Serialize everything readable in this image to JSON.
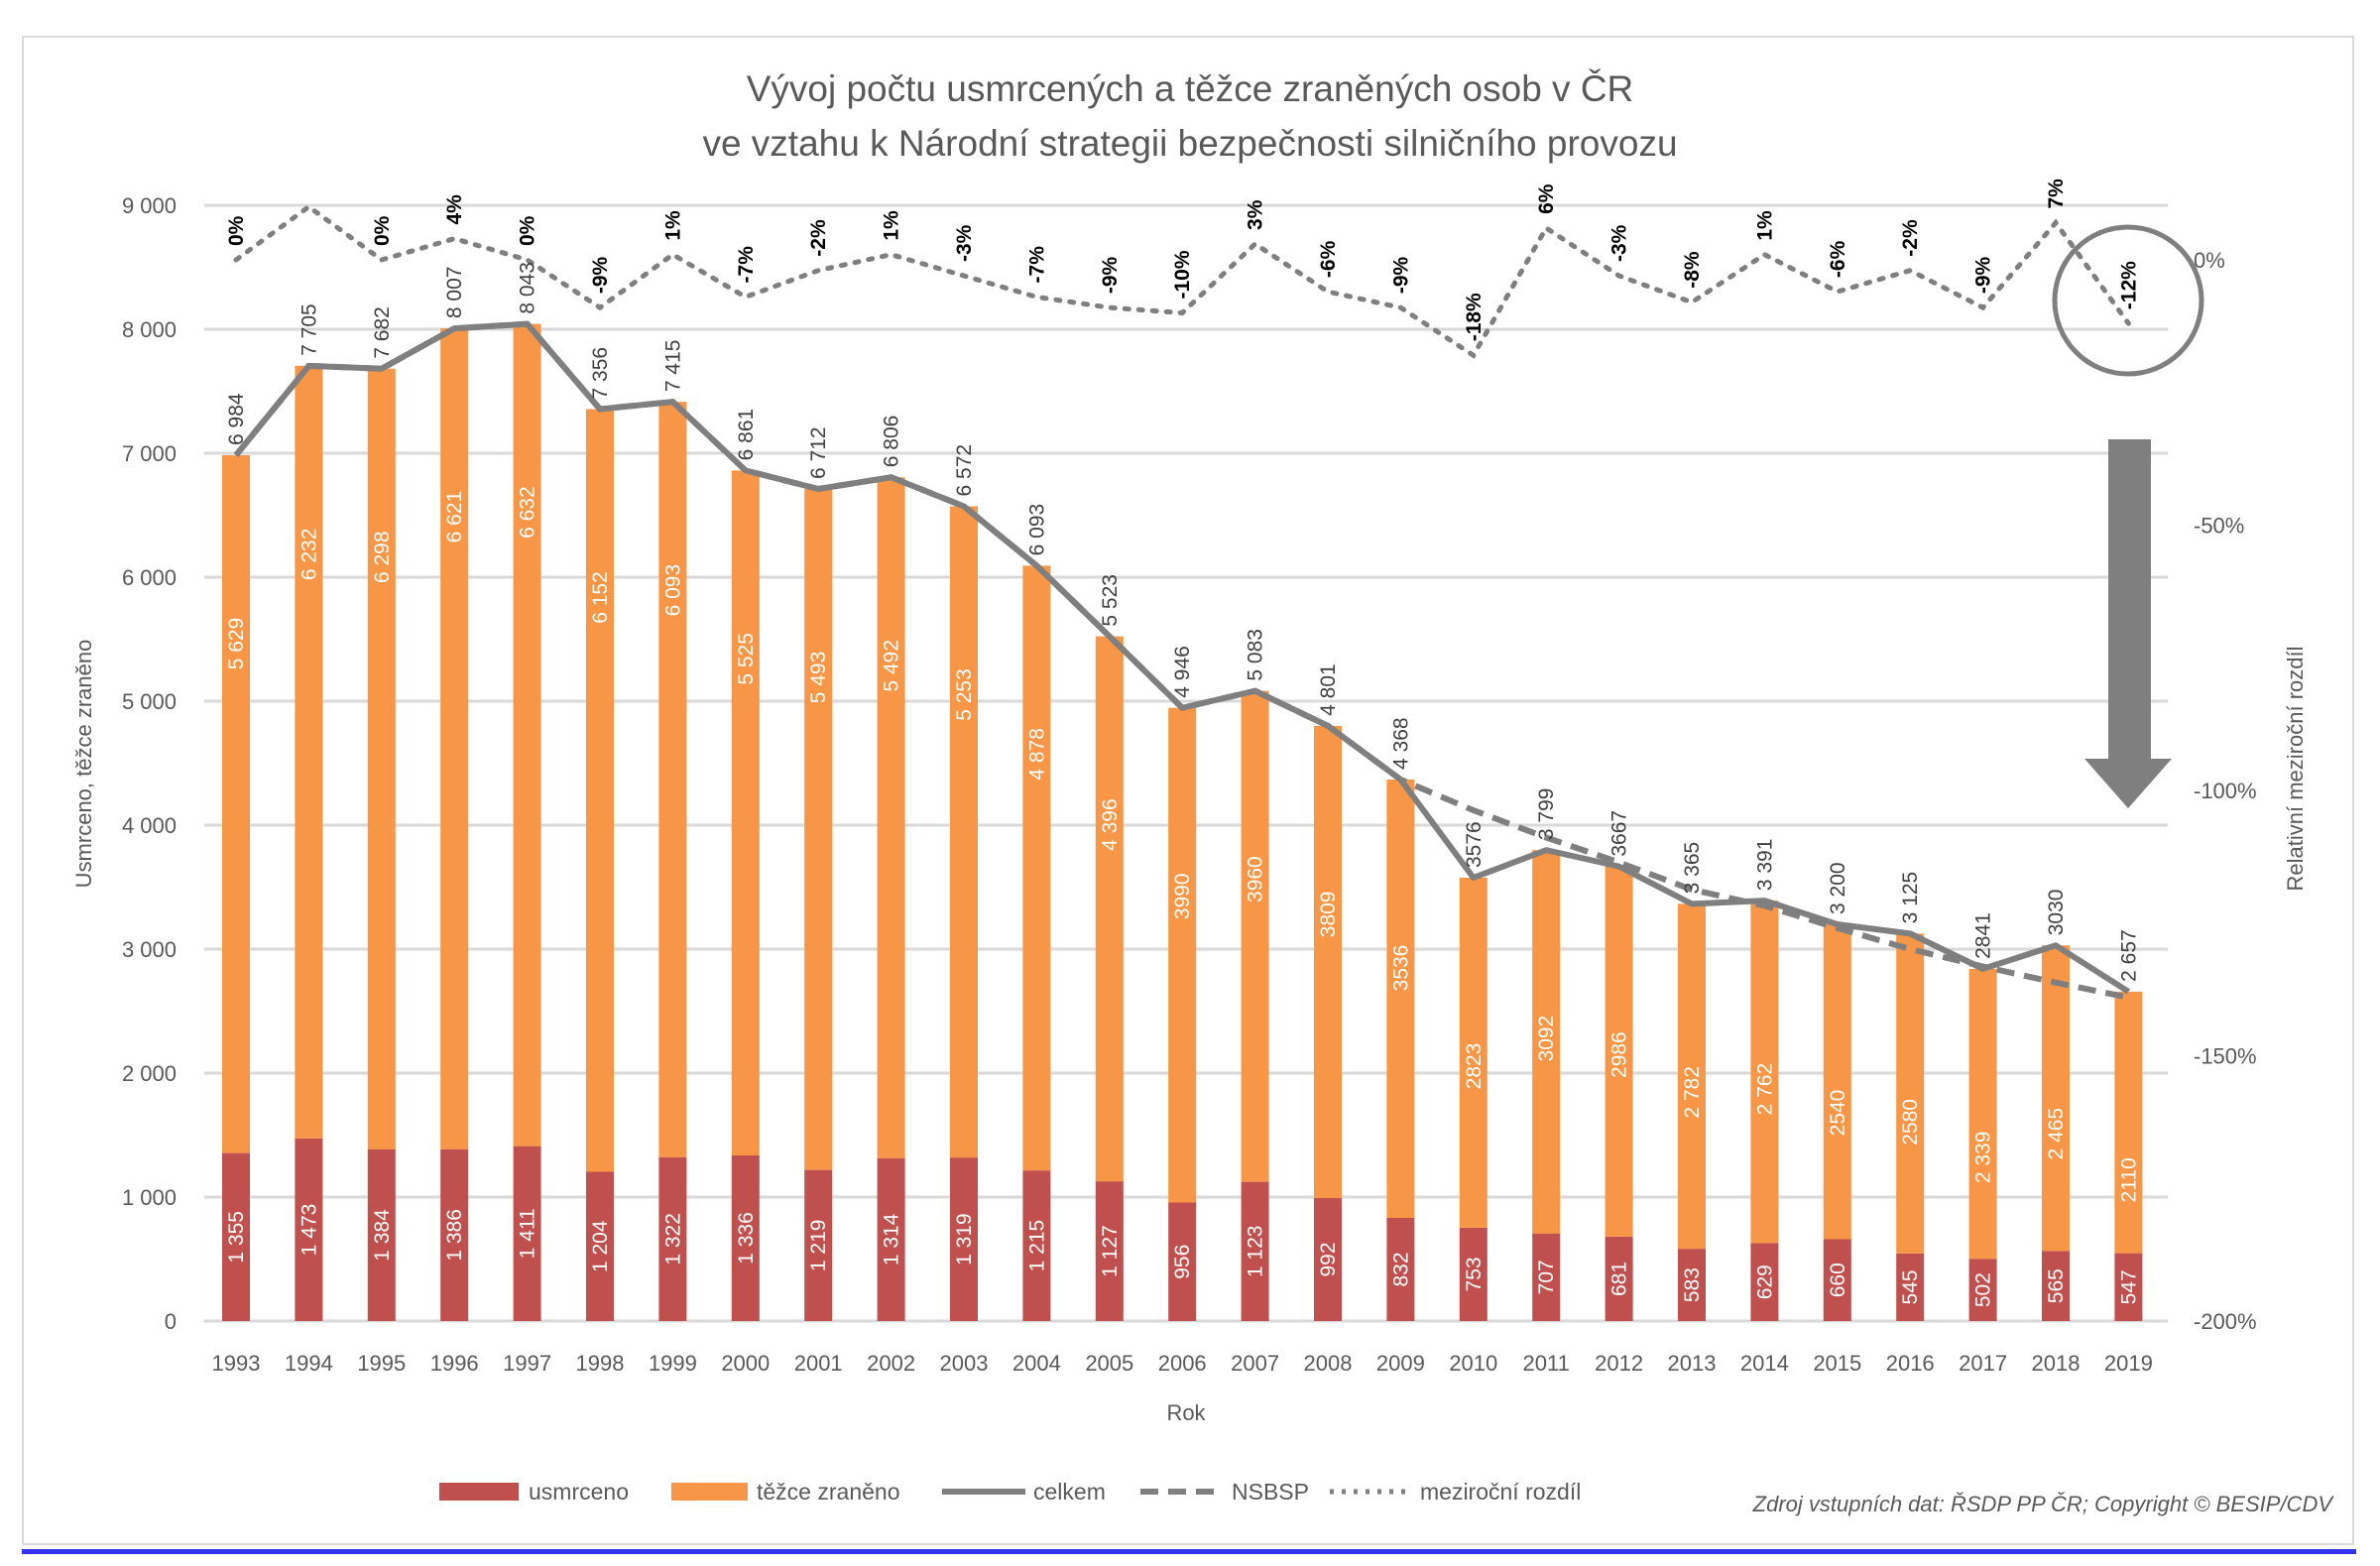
{
  "chart_data": {
    "type": "bar",
    "title": "Vývoj počtu usmrcených a těžce zraněných osob v ČR",
    "subtitle": "ve vztahu k Národní strategii bezpečnosti silničního provozu",
    "xlabel": "Rok",
    "ylabel": "Usmrceno, těžce zraněno",
    "y2label": "Relativní meziroční rozdíl",
    "ylim": [
      0,
      9000
    ],
    "y2lim": [
      -200,
      0
    ],
    "yticks": [
      "0",
      "1 000",
      "2 000",
      "3 000",
      "4 000",
      "5 000",
      "6 000",
      "7 000",
      "8 000",
      "9 000"
    ],
    "y2ticks": [
      "-200%",
      "-150%",
      "-100%",
      "-50%",
      "0%"
    ],
    "grid": true,
    "legend_position": "bottom",
    "categories": [
      "1993",
      "1994",
      "1995",
      "1996",
      "1997",
      "1998",
      "1999",
      "2000",
      "2001",
      "2002",
      "2003",
      "2004",
      "2005",
      "2006",
      "2007",
      "2008",
      "2009",
      "2010",
      "2011",
      "2012",
      "2013",
      "2014",
      "2015",
      "2016",
      "2017",
      "2018",
      "2019"
    ],
    "series": [
      {
        "name": "usmrceno",
        "type": "stacked-bar",
        "color": "#c0504d",
        "values": [
          1355,
          1473,
          1384,
          1386,
          1411,
          1204,
          1322,
          1336,
          1219,
          1314,
          1319,
          1215,
          1127,
          956,
          1123,
          992,
          832,
          753,
          707,
          681,
          583,
          629,
          660,
          545,
          502,
          565,
          547
        ],
        "labels": [
          "1 355",
          "1 473",
          "1 384",
          "1 386",
          "1 411",
          "1 204",
          "1 322",
          "1 336",
          "1 219",
          "1 314",
          "1 319",
          "1 215",
          "1 127",
          "956",
          "1 123",
          "992",
          "832",
          "753",
          "707",
          "681",
          "583",
          "629",
          "660",
          "545",
          "502",
          "565",
          "547"
        ]
      },
      {
        "name": "těžce zraněno",
        "type": "stacked-bar",
        "color": "#f79646",
        "values": [
          5629,
          6232,
          6298,
          6621,
          6632,
          6152,
          6093,
          5525,
          5493,
          5492,
          5253,
          4878,
          4396,
          3990,
          3960,
          3809,
          3536,
          2823,
          3092,
          2986,
          2782,
          2762,
          2540,
          2580,
          2339,
          2465,
          2110
        ],
        "labels": [
          "5 629",
          "6 232",
          "6 298",
          "6 621",
          "6 632",
          "6 152",
          "6 093",
          "5 525",
          "5 493",
          "5 492",
          "5 253",
          "4 878",
          "4 396",
          "3990",
          "3960",
          "3809",
          "3536",
          "2823",
          "3092",
          "2986",
          "2 782",
          "2 762",
          "2540",
          "2580",
          "2 339",
          "2 465",
          "2110"
        ]
      },
      {
        "name": "celkem",
        "type": "line",
        "color": "#7f7f7f",
        "values": [
          6984,
          7705,
          7682,
          8007,
          8043,
          7356,
          7415,
          6861,
          6712,
          6806,
          6572,
          6093,
          5523,
          4946,
          5083,
          4801,
          4368,
          3576,
          3799,
          3667,
          3365,
          3391,
          3200,
          3125,
          2841,
          3030,
          2657
        ],
        "labels": [
          "6 984",
          "7 705",
          "7 682",
          "8 007",
          "8 043",
          "7 356",
          "7 415",
          "6 861",
          "6 712",
          "6 806",
          "6 572",
          "6 093",
          "5 523",
          "4 946",
          "5 083",
          "4 801",
          "4 368",
          "3576",
          "3 799",
          "3667",
          "3 365",
          "3 391",
          "3 200",
          "3 125",
          "2841",
          "3030",
          "2 657"
        ]
      },
      {
        "name": "NSBSP",
        "type": "dashed-line",
        "color": "#7f7f7f",
        "values": [
          6984,
          7705,
          7682,
          8007,
          8043,
          7356,
          7415,
          6861,
          6712,
          6806,
          6572,
          6093,
          5523,
          4946,
          5083,
          4801,
          4368,
          4120,
          3900,
          3700,
          3480,
          3350,
          3170,
          3000,
          2860,
          2730,
          2610
        ]
      },
      {
        "name": "meziroční rozdíl",
        "type": "dotted-line",
        "axis": "right",
        "color": "#7f7f7f",
        "values": [
          0,
          10,
          0,
          4,
          0,
          -9,
          1,
          -7,
          -2,
          1,
          -3,
          -7,
          -9,
          -10,
          3,
          -6,
          -9,
          -18,
          6,
          -3,
          -8,
          1,
          -6,
          -2,
          -9,
          7,
          -12
        ],
        "labels": [
          "0%",
          null,
          "0%",
          "4%",
          "0%",
          "-9%",
          "1%",
          "-7%",
          "-2%",
          "1%",
          "-3%",
          "-7%",
          "-9%",
          "-10%",
          "3%",
          "-6%",
          "-9%",
          "-18%",
          "6%",
          "-3%",
          "-8%",
          "1%",
          "-6%",
          "-2%",
          "-9%",
          "7%",
          "-12%"
        ]
      }
    ],
    "annotations": {
      "highlight": "circle around 2019 meziroční rozdíl",
      "arrow": "downward arrow"
    },
    "source": "Zdroj vstupních dat: ŘSDP PP ČR; Copyright © BESIP/CDV"
  },
  "legend": [
    "usmrceno",
    "těžce zraněno",
    "celkem",
    "NSBSP",
    "meziroční rozdíl"
  ]
}
